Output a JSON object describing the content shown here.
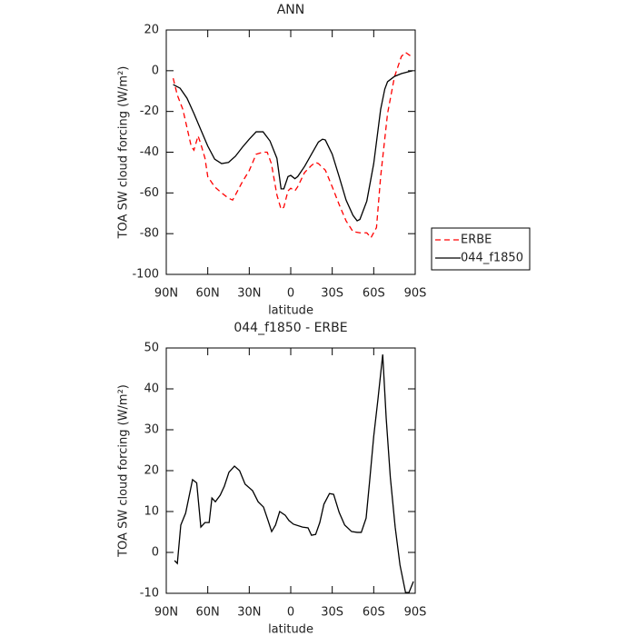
{
  "chart_data": [
    {
      "type": "line",
      "title": "ANN",
      "xlabel": "latitude",
      "ylabel": "TOA SW cloud forcing (W/m²)",
      "xlim": [
        90,
        -90
      ],
      "xticks": [
        {
          "value": 90,
          "label": "90N"
        },
        {
          "value": 60,
          "label": "60N"
        },
        {
          "value": 30,
          "label": "30N"
        },
        0,
        {
          "value": -30,
          "label": "30S"
        },
        {
          "value": -60,
          "label": "60S"
        },
        {
          "value": -90,
          "label": "90S"
        }
      ],
      "ylim": [
        -100,
        20
      ],
      "yticks": [
        -100,
        -80,
        -60,
        -40,
        -20,
        0,
        20
      ],
      "legend": "right",
      "series": [
        {
          "name": "ERBE",
          "color": "#ff0000",
          "dash": true,
          "x": [
            85,
            82,
            78,
            75,
            72,
            70,
            67,
            65,
            62,
            60,
            55,
            50,
            45,
            42,
            40,
            35,
            30,
            25,
            20,
            17,
            14,
            10,
            7,
            5,
            2,
            0,
            -3,
            -5,
            -10,
            -15,
            -18,
            -20,
            -25,
            -30,
            -35,
            -40,
            -45,
            -50,
            -55,
            -58,
            -62,
            -65,
            -70,
            -75,
            -80,
            -83,
            -88
          ],
          "values": [
            -3.7,
            -12,
            -19,
            -28,
            -37,
            -39,
            -32,
            -36,
            -43,
            -52,
            -57,
            -60,
            -62.6,
            -63.5,
            -61,
            -54.6,
            -49,
            -41,
            -40,
            -40,
            -45.6,
            -61,
            -68,
            -67,
            -59,
            -57.7,
            -59,
            -57,
            -50,
            -46.5,
            -45,
            -45.6,
            -48.8,
            -57,
            -65.7,
            -73.7,
            -79,
            -79.6,
            -79.6,
            -82,
            -77,
            -52,
            -21,
            -3,
            7,
            9,
            6.6
          ]
        },
        {
          "name": "044_f1850",
          "color": "#000000",
          "dash": false,
          "x": [
            85,
            80,
            75,
            70,
            65,
            60,
            55,
            50,
            45,
            40,
            35,
            30,
            25,
            20,
            15,
            10,
            7,
            5,
            2,
            0,
            -3,
            -5,
            -10,
            -15,
            -20,
            -23,
            -25,
            -30,
            -35,
            -40,
            -45,
            -48,
            -50,
            -55,
            -60,
            -65,
            -68,
            -70,
            -75,
            -80,
            -85,
            -88
          ],
          "values": [
            -6.8,
            -8.6,
            -13.5,
            -21,
            -29,
            -37,
            -43.4,
            -45.6,
            -45,
            -42,
            -37.6,
            -33.6,
            -30,
            -30,
            -34.5,
            -43,
            -58,
            -58,
            -52,
            -51.4,
            -53,
            -52,
            -47,
            -41,
            -35,
            -33.6,
            -34,
            -41,
            -52,
            -63.5,
            -71,
            -73.7,
            -73,
            -64,
            -45.6,
            -19,
            -9,
            -5.4,
            -2.8,
            -1.4,
            -0.5,
            0
          ]
        }
      ]
    },
    {
      "type": "line",
      "title": "044_f1850 - ERBE",
      "xlabel": "latitude",
      "ylabel": "TOA SW cloud forcing (W/m²)",
      "xlim": [
        90,
        -90
      ],
      "xticks": [
        {
          "value": 90,
          "label": "90N"
        },
        {
          "value": 60,
          "label": "60N"
        },
        {
          "value": 30,
          "label": "30N"
        },
        0,
        {
          "value": -30,
          "label": "30S"
        },
        {
          "value": -60,
          "label": "60S"
        },
        {
          "value": -90,
          "label": "90S"
        }
      ],
      "ylim": [
        -10,
        50
      ],
      "yticks": [
        -10,
        0,
        10,
        20,
        30,
        40,
        50
      ],
      "series": [
        {
          "color": "#000000",
          "dash": false,
          "x": [
            84,
            82,
            79.5,
            76,
            71,
            68,
            65,
            62,
            59,
            57,
            54.5,
            51,
            48,
            44.7,
            40.7,
            37,
            33,
            27.6,
            23.6,
            19.7,
            16.4,
            13.8,
            11,
            8,
            4,
            1.3,
            -2,
            -8.5,
            -12.5,
            -15,
            -18,
            -21,
            -24,
            -28,
            -31,
            -35,
            -39,
            -44,
            -48,
            -51,
            -54.5,
            -57,
            -60,
            -63,
            -66.5,
            -69,
            -72,
            -75.5,
            -79,
            -83,
            -85.5,
            -88.7
          ],
          "values": [
            -2,
            -2.7,
            6.7,
            9.6,
            17.8,
            17,
            6.2,
            7.3,
            7.3,
            13.3,
            12.4,
            14,
            16.2,
            19.6,
            21.1,
            20,
            16.7,
            15.1,
            12.4,
            11.1,
            7.8,
            5.1,
            6.7,
            10,
            9.1,
            7.8,
            6.9,
            6.2,
            6,
            4.2,
            4.4,
            7.3,
            11.8,
            14.4,
            14.2,
            9.8,
            6.7,
            5.1,
            4.9,
            4.9,
            8.4,
            17.3,
            28.4,
            37.3,
            48.4,
            32.9,
            18.4,
            6.2,
            -3.1,
            -9.8,
            -9.8,
            -7.1
          ]
        }
      ]
    }
  ]
}
